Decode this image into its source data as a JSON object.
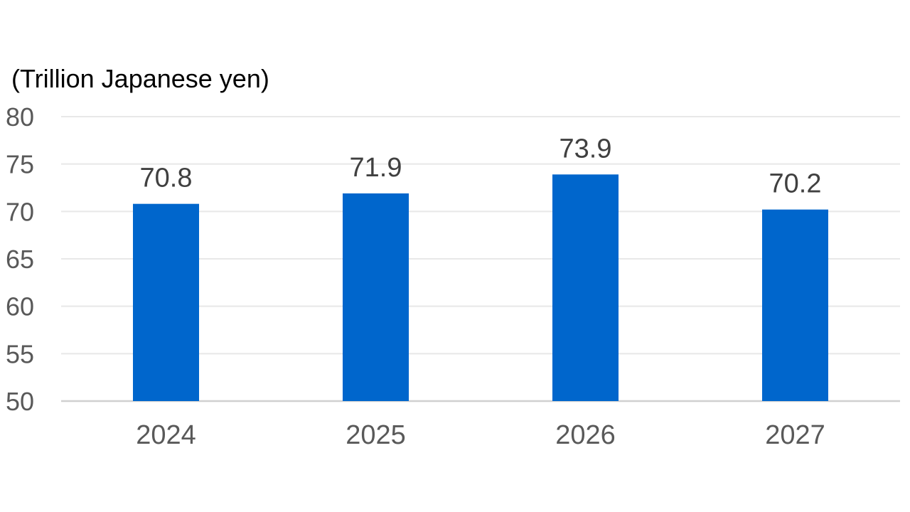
{
  "chart_data": {
    "type": "bar",
    "title": "",
    "xlabel": "",
    "ylabel": "(Trillion Japanese yen)",
    "categories": [
      "2024",
      "2025",
      "2026",
      "2027"
    ],
    "values": [
      70.8,
      71.9,
      73.9,
      70.2
    ],
    "data_labels": [
      "70.8",
      "71.9",
      "73.9",
      "70.2"
    ],
    "ylim": [
      50,
      80
    ],
    "yticks": [
      50,
      55,
      60,
      65,
      70,
      75,
      80
    ],
    "grid": true,
    "legend": "none",
    "bar_color": "#0066CC",
    "grid_color": "#E8E8E8",
    "axis_color": "#D0D0D0"
  }
}
